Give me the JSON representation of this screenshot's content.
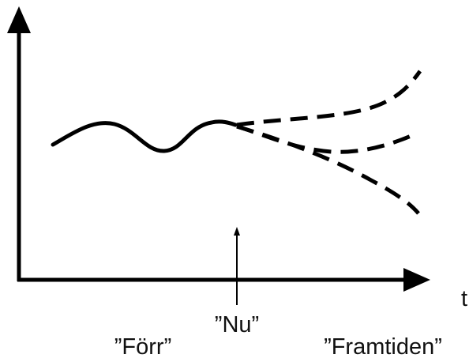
{
  "labels": {
    "axis_t": "t",
    "past": "”Förr”",
    "now": "”Nu”",
    "future": "”Framtiden”"
  },
  "colors": {
    "ink": "#000000"
  }
}
